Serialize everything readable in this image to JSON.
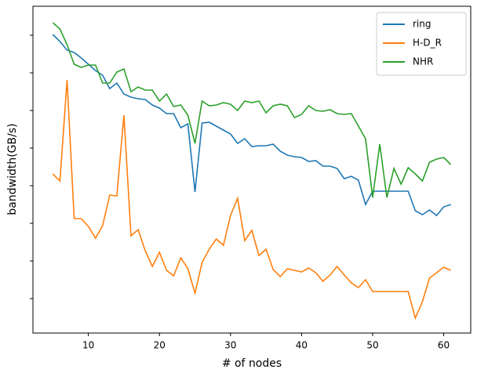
{
  "chart_data": {
    "type": "line",
    "xlabel": "# of nodes",
    "ylabel": "bandwidth(GB/s)",
    "x": [
      5,
      6,
      7,
      8,
      9,
      10,
      11,
      12,
      13,
      14,
      15,
      16,
      17,
      18,
      19,
      20,
      21,
      22,
      23,
      24,
      25,
      26,
      27,
      28,
      29,
      30,
      31,
      32,
      33,
      34,
      35,
      36,
      37,
      38,
      39,
      40,
      41,
      42,
      43,
      44,
      45,
      46,
      47,
      48,
      49,
      50,
      51,
      52,
      53,
      54,
      55,
      56,
      57,
      58,
      59,
      60,
      61
    ],
    "series": [
      {
        "name": "ring",
        "color": "#1f77b4",
        "values": [
          381,
          372,
          361,
          358,
          351,
          343,
          335,
          329,
          312,
          319,
          305,
          301,
          299,
          298,
          291,
          287,
          280,
          280,
          262,
          267,
          180,
          268,
          269,
          264,
          259,
          254,
          242,
          248,
          238,
          239,
          239,
          241,
          232,
          227,
          225,
          224,
          219,
          220,
          213,
          213,
          210,
          197,
          200,
          195,
          164,
          181,
          181,
          181,
          181,
          181,
          181,
          156,
          151,
          157,
          150,
          161,
          164
        ]
      },
      {
        "name": "H-D_R",
        "color": "#ff7f0e",
        "values": [
          203,
          194,
          323,
          146,
          146,
          136,
          121,
          137,
          176,
          175,
          278,
          124,
          132,
          105,
          85,
          103,
          80,
          73,
          96,
          82,
          51,
          90,
          107,
          120,
          112,
          150,
          172,
          118,
          131,
          99,
          107,
          81,
          72,
          82,
          80,
          78,
          83,
          77,
          66,
          74,
          85,
          74,
          64,
          58,
          68,
          53,
          53,
          53,
          53,
          53,
          53,
          19,
          40,
          70,
          77,
          84,
          80
        ]
      },
      {
        "name": "NHR",
        "color": "#2ca02c",
        "values": [
          396,
          388,
          368,
          343,
          339,
          342,
          342,
          319,
          319,
          333,
          337,
          308,
          314,
          310,
          310,
          296,
          305,
          289,
          291,
          278,
          242,
          296,
          290,
          291,
          294,
          292,
          284,
          296,
          294,
          296,
          281,
          290,
          292,
          290,
          275,
          279,
          290,
          284,
          283,
          285,
          280,
          279,
          280,
          264,
          248,
          173,
          241,
          173,
          210,
          190,
          211,
          203,
          194,
          218,
          222,
          224,
          215
        ]
      }
    ],
    "xlim": [
      2.2,
      63.8
    ],
    "xticks": [
      10,
      20,
      30,
      40,
      50,
      60
    ],
    "ylim": [
      0,
      417
    ],
    "yticks": [
      44,
      92,
      140,
      188,
      236,
      284,
      332,
      380
    ],
    "legend": "upper right"
  }
}
